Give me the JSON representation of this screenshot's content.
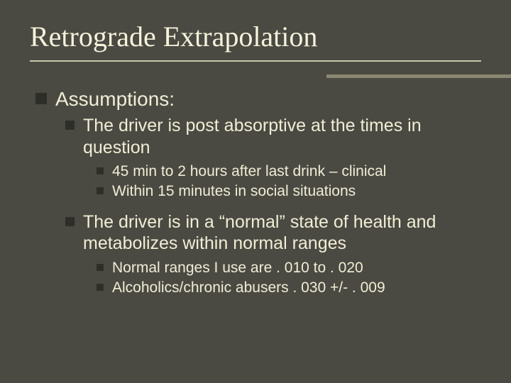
{
  "slide": {
    "background_color": "#4a4a42",
    "text_color": "#f5f2dc",
    "accent_bar_color": "#8a876f",
    "rule_color": "#c9c7b0",
    "bullet_color": "#2e2e28",
    "title_font": "Times New Roman",
    "body_font": "Arial",
    "title_fontsize_pt": 30,
    "l1_fontsize_pt": 21,
    "l2_fontsize_pt": 19,
    "l3_fontsize_pt": 16
  },
  "title": "Retrograde Extrapolation",
  "l1_assumptions": "Assumptions:",
  "l2_post_absorptive": "The driver is post absorptive at the times in question",
  "l3_clinical": "45 min to 2 hours after last drink – clinical",
  "l3_social": "Within 15 minutes in social situations",
  "l2_normal_state": "The driver is in a “normal” state of health and metabolizes within normal ranges",
  "l3_normal_ranges": "Normal ranges I use are . 010 to . 020",
  "l3_alcoholics": "Alcoholics/chronic abusers . 030 +/- . 009"
}
